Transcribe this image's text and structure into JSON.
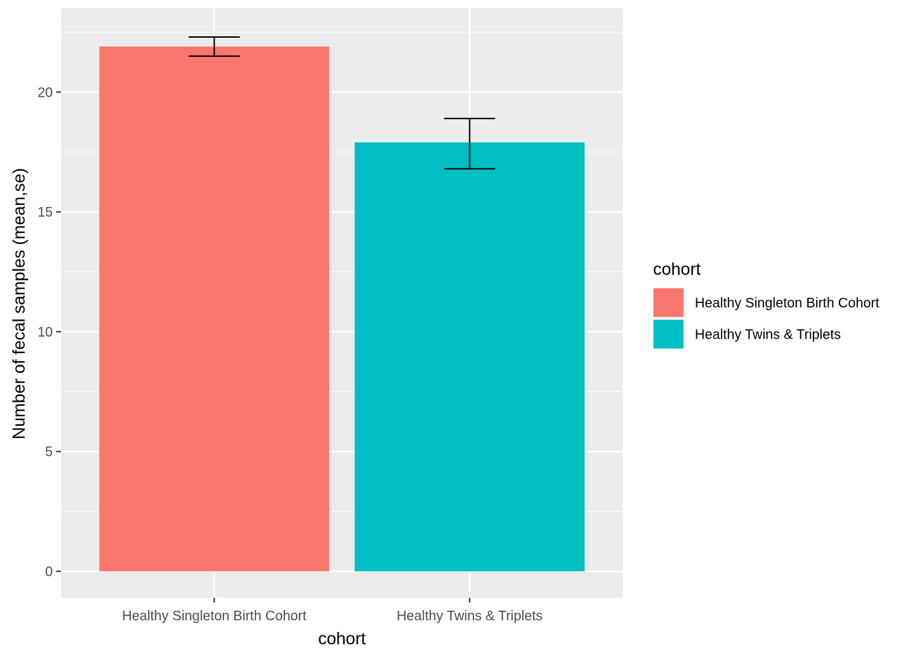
{
  "chart_data": {
    "type": "bar",
    "categories": [
      "Healthy Singleton Birth Cohort",
      "Healthy Twins & Triplets"
    ],
    "values": [
      21.9,
      17.9
    ],
    "error_bars": [
      {
        "low": 21.5,
        "high": 22.3
      },
      {
        "low": 16.8,
        "high": 18.9
      }
    ],
    "colors": [
      "#F8766D",
      "#00BFC4"
    ],
    "xlabel": "cohort",
    "ylabel": "Number of fecal samples (mean,se)",
    "ylim": [
      -1.1,
      23.5
    ],
    "yticks": [
      0,
      5,
      10,
      15,
      20
    ],
    "yminor": [
      2.5,
      7.5,
      12.5,
      17.5,
      22.5
    ],
    "grid": true,
    "panel_background": "#EBEBEB",
    "legend": {
      "title": "cohort",
      "position": "right",
      "entries": [
        "Healthy Singleton Birth Cohort",
        "Healthy Twins & Triplets"
      ]
    }
  }
}
